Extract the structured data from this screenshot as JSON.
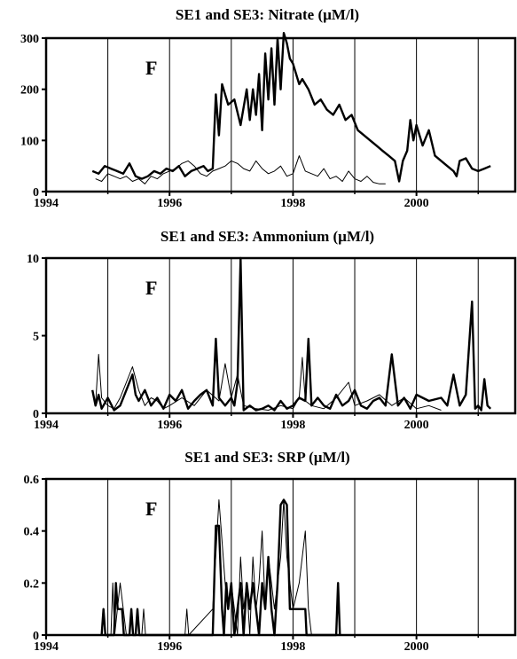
{
  "chart_data": [
    {
      "type": "line",
      "title": "SE1 and SE3: Nitrate (µM/l)",
      "panel_label": "F",
      "xlim": [
        1994,
        2001.6
      ],
      "ylim": [
        0,
        300
      ],
      "x_ticks": [
        1994,
        1996,
        1998,
        2000
      ],
      "y_ticks": [
        0,
        100,
        200,
        300
      ],
      "vertical_gridlines": [
        1995,
        1996,
        1997,
        1998,
        1999,
        2000,
        2001
      ],
      "series": [
        {
          "style": "thick",
          "x": [
            1994.75,
            1994.85,
            1994.95,
            1995.05,
            1995.15,
            1995.25,
            1995.35,
            1995.45,
            1995.55,
            1995.65,
            1995.75,
            1995.85,
            1995.95,
            1996.05,
            1996.15,
            1996.25,
            1996.35,
            1996.45,
            1996.55,
            1996.62,
            1996.7,
            1996.75,
            1996.8,
            1996.85,
            1996.95,
            1997.05,
            1997.15,
            1997.25,
            1997.3,
            1997.35,
            1997.4,
            1997.45,
            1997.5,
            1997.55,
            1997.6,
            1997.65,
            1997.7,
            1997.75,
            1997.8,
            1997.85,
            1997.9,
            1997.95,
            1998.0,
            1998.05,
            1998.1,
            1998.15,
            1998.25,
            1998.35,
            1998.45,
            1998.55,
            1998.65,
            1998.75,
            1998.85,
            1998.95,
            1999.05,
            1999.15,
            1999.25,
            1999.35,
            1999.45,
            1999.55,
            1999.65,
            1999.72,
            1999.78,
            1999.85,
            1999.9,
            1999.95,
            2000.0,
            2000.05,
            2000.1,
            2000.2,
            2000.3,
            2000.4,
            2000.5,
            2000.6,
            2000.65,
            2000.7,
            2000.8,
            2000.9,
            2001.0,
            2001.1,
            2001.2
          ],
          "y": [
            40,
            35,
            50,
            45,
            40,
            35,
            55,
            30,
            25,
            30,
            40,
            35,
            45,
            40,
            50,
            30,
            40,
            45,
            50,
            40,
            45,
            190,
            110,
            210,
            170,
            180,
            130,
            200,
            140,
            200,
            150,
            230,
            120,
            270,
            180,
            280,
            170,
            300,
            200,
            310,
            290,
            260,
            250,
            230,
            210,
            220,
            200,
            170,
            180,
            160,
            150,
            170,
            140,
            150,
            120,
            110,
            100,
            90,
            80,
            70,
            60,
            20,
            60,
            80,
            140,
            100,
            130,
            110,
            90,
            120,
            70,
            60,
            50,
            40,
            30,
            60,
            65,
            45,
            40,
            45,
            50
          ]
        },
        {
          "style": "thin",
          "x": [
            1994.8,
            1994.9,
            1995.0,
            1995.1,
            1995.2,
            1995.3,
            1995.4,
            1995.5,
            1995.6,
            1995.7,
            1995.8,
            1995.9,
            1996.0,
            1996.1,
            1996.2,
            1996.3,
            1996.4,
            1996.5,
            1996.6,
            1996.7,
            1996.8,
            1996.9,
            1997.0,
            1997.1,
            1997.2,
            1997.3,
            1997.4,
            1997.5,
            1997.6,
            1997.7,
            1997.8,
            1997.9,
            1998.0,
            1998.1,
            1998.2,
            1998.3,
            1998.4,
            1998.5,
            1998.6,
            1998.7,
            1998.8,
            1998.9,
            1999.0,
            1999.1,
            1999.2,
            1999.3,
            1999.4,
            1999.5
          ],
          "y": [
            25,
            20,
            35,
            30,
            25,
            30,
            20,
            25,
            15,
            30,
            25,
            35,
            40,
            45,
            55,
            60,
            50,
            35,
            30,
            40,
            45,
            50,
            60,
            55,
            45,
            40,
            60,
            45,
            35,
            40,
            50,
            30,
            35,
            70,
            40,
            35,
            30,
            45,
            25,
            30,
            20,
            40,
            25,
            20,
            30,
            18,
            15,
            15
          ]
        }
      ]
    },
    {
      "type": "line",
      "title": "SE1 and SE3: Ammonium (µM/l)",
      "panel_label": "F",
      "xlim": [
        1994,
        2001.6
      ],
      "ylim": [
        0,
        10
      ],
      "x_ticks": [
        1994,
        1996,
        1998,
        2000
      ],
      "y_ticks": [
        0,
        5,
        10
      ],
      "vertical_gridlines": [
        1995,
        1996,
        1997,
        1998,
        1999,
        2000,
        2001
      ],
      "series": [
        {
          "style": "thick",
          "x": [
            1994.75,
            1994.8,
            1994.85,
            1994.9,
            1995.0,
            1995.1,
            1995.2,
            1995.3,
            1995.4,
            1995.45,
            1995.5,
            1995.6,
            1995.7,
            1995.8,
            1995.9,
            1996.0,
            1996.1,
            1996.2,
            1996.3,
            1996.4,
            1996.5,
            1996.6,
            1996.7,
            1996.75,
            1996.8,
            1996.9,
            1997.0,
            1997.05,
            1997.1,
            1997.15,
            1997.2,
            1997.3,
            1997.4,
            1997.5,
            1997.6,
            1997.7,
            1997.8,
            1997.9,
            1998.0,
            1998.1,
            1998.2,
            1998.25,
            1998.3,
            1998.4,
            1998.5,
            1998.6,
            1998.7,
            1998.8,
            1998.9,
            1999.0,
            1999.1,
            1999.2,
            1999.3,
            1999.4,
            1999.5,
            1999.6,
            1999.7,
            1999.8,
            1999.9,
            2000.0,
            2000.2,
            2000.4,
            2000.5,
            2000.6,
            2000.7,
            2000.8,
            2000.9,
            2000.95,
            2001.0,
            2001.05,
            2001.1,
            2001.15,
            2001.2
          ],
          "y": [
            1.5,
            0.5,
            1.2,
            0.3,
            1.0,
            0.2,
            0.5,
            1.5,
            2.5,
            1.2,
            0.8,
            1.5,
            0.5,
            1.0,
            0.3,
            1.2,
            0.8,
            1.5,
            0.3,
            0.8,
            1.2,
            1.5,
            0.5,
            4.8,
            1.0,
            0.5,
            1.0,
            0.5,
            2.0,
            10.0,
            0.2,
            0.5,
            0.2,
            0.3,
            0.5,
            0.2,
            0.8,
            0.3,
            0.5,
            1.0,
            0.8,
            4.8,
            0.5,
            1.0,
            0.5,
            0.3,
            1.2,
            0.5,
            0.8,
            1.5,
            0.5,
            0.3,
            0.8,
            1.0,
            0.5,
            3.8,
            0.5,
            1.0,
            0.3,
            1.2,
            0.8,
            1.0,
            0.5,
            2.5,
            0.5,
            1.2,
            7.2,
            0.3,
            0.5,
            0.2,
            2.2,
            0.5,
            0.3
          ]
        },
        {
          "style": "thin",
          "x": [
            1994.8,
            1994.85,
            1994.9,
            1995.0,
            1995.1,
            1995.2,
            1995.3,
            1995.4,
            1995.5,
            1995.6,
            1995.7,
            1995.8,
            1995.9,
            1996.0,
            1996.2,
            1996.4,
            1996.6,
            1996.8,
            1996.9,
            1997.0,
            1997.1,
            1997.2,
            1997.4,
            1997.6,
            1997.8,
            1998.0,
            1998.1,
            1998.15,
            1998.2,
            1998.3,
            1998.5,
            1998.7,
            1998.9,
            1999.0,
            1999.2,
            1999.4,
            1999.6,
            1999.8,
            2000.0,
            2000.2,
            2000.4
          ],
          "y": [
            0.5,
            3.8,
            1.0,
            0.5,
            0.3,
            1.0,
            2.0,
            3.0,
            1.5,
            0.5,
            1.0,
            0.8,
            0.3,
            0.5,
            1.0,
            0.5,
            1.5,
            0.8,
            3.2,
            1.0,
            2.5,
            0.5,
            0.3,
            0.2,
            0.5,
            0.3,
            1.0,
            3.6,
            0.8,
            0.5,
            0.3,
            1.0,
            2.0,
            0.5,
            0.8,
            1.2,
            0.5,
            1.0,
            0.3,
            0.5,
            0.2
          ]
        }
      ]
    },
    {
      "type": "line",
      "title": "SE1 and SE3: SRP (µM/l)",
      "panel_label": "F",
      "xlim": [
        1994,
        2001.6
      ],
      "ylim": [
        0,
        0.6
      ],
      "x_ticks": [
        1994,
        1996,
        1998,
        2000
      ],
      "y_ticks": [
        0,
        0.2,
        0.4,
        0.6
      ],
      "y_tick_labels": [
        "0",
        "0.2",
        "0.4",
        "0.6"
      ],
      "vertical_gridlines": [
        1995,
        1996,
        1997,
        1998,
        1999,
        2000,
        2001
      ],
      "series": [
        {
          "style": "thick",
          "x": [
            1994.9,
            1994.93,
            1994.96,
            1995.1,
            1995.13,
            1995.16,
            1995.2,
            1995.23,
            1995.26,
            1995.35,
            1995.38,
            1995.41,
            1995.45,
            1995.48,
            1995.51,
            1996.7,
            1996.75,
            1996.8,
            1996.85,
            1996.88,
            1996.92,
            1996.95,
            1997.0,
            1997.05,
            1997.1,
            1997.15,
            1997.2,
            1997.25,
            1997.3,
            1997.35,
            1997.4,
            1997.45,
            1997.5,
            1997.55,
            1997.6,
            1997.65,
            1997.7,
            1997.75,
            1997.8,
            1997.85,
            1997.9,
            1997.95,
            1998.0,
            1998.1,
            1998.2,
            1998.22,
            1998.25,
            1998.7,
            1998.73,
            1998.76
          ],
          "y": [
            0,
            0.1,
            0,
            0,
            0.2,
            0.1,
            0.1,
            0.1,
            0,
            0,
            0.1,
            0,
            0,
            0.1,
            0,
            0,
            0.42,
            0.42,
            0.1,
            0,
            0.2,
            0.1,
            0.2,
            0,
            0.1,
            0.2,
            0,
            0.2,
            0.1,
            0.2,
            0.1,
            0,
            0.2,
            0.1,
            0.3,
            0.1,
            0,
            0.2,
            0.5,
            0.52,
            0.5,
            0.1,
            0.1,
            0.1,
            0.1,
            0,
            0,
            0,
            0.2,
            0
          ]
        },
        {
          "style": "thin",
          "x": [
            1995.05,
            1995.08,
            1995.11,
            1995.2,
            1995.25,
            1995.3,
            1995.55,
            1995.58,
            1995.61,
            1996.25,
            1996.28,
            1996.31,
            1996.7,
            1996.8,
            1996.9,
            1996.95,
            1997.0,
            1997.05,
            1997.1,
            1997.15,
            1997.2,
            1997.25,
            1997.3,
            1997.35,
            1997.4,
            1997.45,
            1997.5,
            1997.55,
            1997.6,
            1997.65,
            1997.7,
            1997.75,
            1997.8,
            1997.85,
            1997.9,
            1997.95,
            1998.0,
            1998.1,
            1998.2,
            1998.25,
            1998.3
          ],
          "y": [
            0,
            0.2,
            0,
            0.2,
            0.1,
            0,
            0,
            0.1,
            0,
            0,
            0.1,
            0,
            0.1,
            0.52,
            0.2,
            0.1,
            0.2,
            0.1,
            0,
            0.3,
            0.1,
            0.2,
            0,
            0.3,
            0.1,
            0.2,
            0.4,
            0.1,
            0.3,
            0.2,
            0.1,
            0.2,
            0.3,
            0.52,
            0.3,
            0.2,
            0.1,
            0.2,
            0.4,
            0.1,
            0
          ]
        }
      ]
    }
  ]
}
